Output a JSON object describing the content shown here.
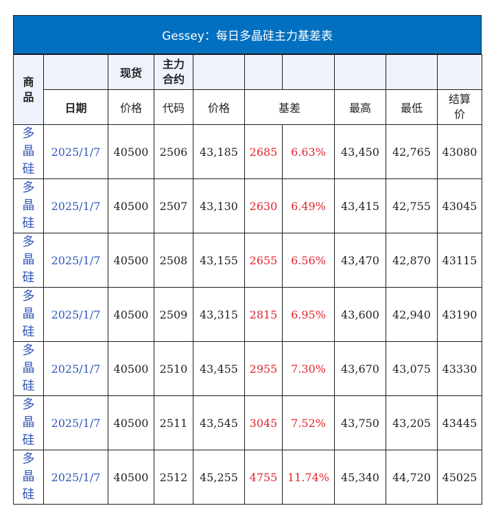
{
  "title": "Gessey：每日多晶硅主力基差表",
  "headers": {
    "product": "商品",
    "spot": "现货",
    "main_contract": "主力合约",
    "date": "日期",
    "spot_price": "价格",
    "code": "代码",
    "price": "价格",
    "basis": "基差",
    "high": "最高",
    "low": "最低",
    "settle": "结算价"
  },
  "rows": [
    {
      "product": "多晶硅",
      "date": "2025/1/7",
      "spot": "40500",
      "code": "2506",
      "price": "43,185",
      "basis": "2685",
      "basis_pct": "6.63%",
      "high": "43,450",
      "low": "42,765",
      "settle": "43080"
    },
    {
      "product": "多晶硅",
      "date": "2025/1/7",
      "spot": "40500",
      "code": "2507",
      "price": "43,130",
      "basis": "2630",
      "basis_pct": "6.49%",
      "high": "43,415",
      "low": "42,755",
      "settle": "43045"
    },
    {
      "product": "多晶硅",
      "date": "2025/1/7",
      "spot": "40500",
      "code": "2508",
      "price": "43,155",
      "basis": "2655",
      "basis_pct": "6.56%",
      "high": "43,470",
      "low": "42,870",
      "settle": "43115"
    },
    {
      "product": "多晶硅",
      "date": "2025/1/7",
      "spot": "40500",
      "code": "2509",
      "price": "43,315",
      "basis": "2815",
      "basis_pct": "6.95%",
      "high": "43,600",
      "low": "42,940",
      "settle": "43190"
    },
    {
      "product": "多晶硅",
      "date": "2025/1/7",
      "spot": "40500",
      "code": "2510",
      "price": "43,455",
      "basis": "2955",
      "basis_pct": "7.30%",
      "high": "43,670",
      "low": "43,075",
      "settle": "43330"
    },
    {
      "product": "多晶硅",
      "date": "2025/1/7",
      "spot": "40500",
      "code": "2511",
      "price": "43,545",
      "basis": "3045",
      "basis_pct": "7.52%",
      "high": "43,750",
      "low": "43,205",
      "settle": "43445"
    },
    {
      "product": "多晶硅",
      "date": "2025/1/7",
      "spot": "40500",
      "code": "2512",
      "price": "45,255",
      "basis": "4755",
      "basis_pct": "11.74%",
      "high": "45,340",
      "low": "44,720",
      "settle": "45025"
    }
  ],
  "colors": {
    "title_bg": "#0270c0",
    "basis_text": "#e0242c",
    "product_text": "#2f57b8"
  }
}
